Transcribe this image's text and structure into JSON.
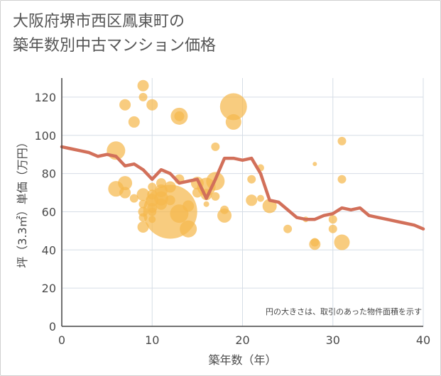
{
  "chart_data": {
    "type": "scatter",
    "title": "大阪府堺市西区鳳東町の\n築年数別中古マンション価格",
    "xlabel": "築年数（年）",
    "ylabel": "坪（3.3㎡）単価（万円）",
    "xlim": [
      0,
      40
    ],
    "ylim": [
      0,
      130
    ],
    "xticks": [
      0,
      10,
      20,
      30,
      40
    ],
    "yticks": [
      0,
      20,
      40,
      60,
      80,
      100,
      120
    ],
    "grid": true,
    "note": "円の大きさは、取引のあった物件面積を示す",
    "colors": {
      "bubble": "#f5b94e",
      "line": "#d2705a",
      "grid": "#d6dde6"
    },
    "series": [
      {
        "kind": "bubble",
        "points": [
          {
            "x": 6,
            "y": 92,
            "s": 13
          },
          {
            "x": 6,
            "y": 72,
            "s": 11
          },
          {
            "x": 7,
            "y": 75,
            "s": 10
          },
          {
            "x": 7,
            "y": 70,
            "s": 8
          },
          {
            "x": 7,
            "y": 116,
            "s": 8
          },
          {
            "x": 8,
            "y": 107,
            "s": 8
          },
          {
            "x": 8,
            "y": 67,
            "s": 6
          },
          {
            "x": 9,
            "y": 126,
            "s": 8
          },
          {
            "x": 9,
            "y": 120,
            "s": 6
          },
          {
            "x": 9,
            "y": 69,
            "s": 9
          },
          {
            "x": 9,
            "y": 64,
            "s": 6
          },
          {
            "x": 9,
            "y": 60,
            "s": 7
          },
          {
            "x": 9,
            "y": 57,
            "s": 6
          },
          {
            "x": 9,
            "y": 52,
            "s": 8
          },
          {
            "x": 10,
            "y": 116,
            "s": 8
          },
          {
            "x": 10,
            "y": 73,
            "s": 6
          },
          {
            "x": 10,
            "y": 69,
            "s": 7
          },
          {
            "x": 10,
            "y": 66,
            "s": 9
          },
          {
            "x": 10,
            "y": 62,
            "s": 7
          },
          {
            "x": 10,
            "y": 60,
            "s": 6
          },
          {
            "x": 10,
            "y": 56,
            "s": 5
          },
          {
            "x": 11,
            "y": 75,
            "s": 7
          },
          {
            "x": 11,
            "y": 71,
            "s": 9
          },
          {
            "x": 11,
            "y": 67,
            "s": 10
          },
          {
            "x": 11,
            "y": 64,
            "s": 8
          },
          {
            "x": 12,
            "y": 60,
            "s": 38
          },
          {
            "x": 12,
            "y": 73,
            "s": 8
          },
          {
            "x": 12,
            "y": 66,
            "s": 7
          },
          {
            "x": 13,
            "y": 110,
            "s": 12
          },
          {
            "x": 13,
            "y": 110,
            "s": 7
          },
          {
            "x": 13,
            "y": 77,
            "s": 7
          },
          {
            "x": 13,
            "y": 59,
            "s": 13
          },
          {
            "x": 14,
            "y": 63,
            "s": 8
          },
          {
            "x": 14,
            "y": 51,
            "s": 12
          },
          {
            "x": 15,
            "y": 75,
            "s": 9
          },
          {
            "x": 15,
            "y": 70,
            "s": 7
          },
          {
            "x": 16,
            "y": 73,
            "s": 13
          },
          {
            "x": 16,
            "y": 69,
            "s": 8
          },
          {
            "x": 16,
            "y": 64,
            "s": 4
          },
          {
            "x": 17,
            "y": 94,
            "s": 6
          },
          {
            "x": 17,
            "y": 76,
            "s": 13
          },
          {
            "x": 17,
            "y": 68,
            "s": 6
          },
          {
            "x": 18,
            "y": 61,
            "s": 6
          },
          {
            "x": 18,
            "y": 58,
            "s": 10
          },
          {
            "x": 19,
            "y": 115,
            "s": 19
          },
          {
            "x": 19,
            "y": 107,
            "s": 11
          },
          {
            "x": 21,
            "y": 77,
            "s": 6
          },
          {
            "x": 21,
            "y": 66,
            "s": 8
          },
          {
            "x": 22,
            "y": 83,
            "s": 5
          },
          {
            "x": 22,
            "y": 67,
            "s": 5
          },
          {
            "x": 23,
            "y": 63,
            "s": 10
          },
          {
            "x": 25,
            "y": 51,
            "s": 6
          },
          {
            "x": 27,
            "y": 56,
            "s": 4
          },
          {
            "x": 28,
            "y": 85,
            "s": 3
          },
          {
            "x": 28,
            "y": 44,
            "s": 6
          },
          {
            "x": 28,
            "y": 43,
            "s": 8
          },
          {
            "x": 30,
            "y": 56,
            "s": 6
          },
          {
            "x": 30,
            "y": 51,
            "s": 6
          },
          {
            "x": 31,
            "y": 97,
            "s": 6
          },
          {
            "x": 31,
            "y": 77,
            "s": 6
          },
          {
            "x": 31,
            "y": 44,
            "s": 11
          }
        ]
      },
      {
        "kind": "line",
        "x": [
          0,
          1,
          2,
          3,
          4,
          5,
          6,
          7,
          8,
          9,
          10,
          11,
          12,
          13,
          14,
          15,
          16,
          17,
          18,
          19,
          20,
          21,
          22,
          23,
          24,
          25,
          26,
          27,
          28,
          29,
          30,
          31,
          32,
          33,
          34,
          35,
          36,
          37,
          38,
          39,
          40
        ],
        "y": [
          94,
          93,
          92,
          91,
          89,
          90,
          89,
          84,
          85,
          82,
          77,
          82,
          80,
          75,
          76,
          77,
          67,
          77,
          88,
          88,
          87,
          88,
          80,
          66,
          65,
          61,
          57,
          56,
          56,
          58,
          59,
          62,
          61,
          62,
          58,
          57,
          56,
          55,
          54,
          53,
          51
        ]
      }
    ]
  }
}
